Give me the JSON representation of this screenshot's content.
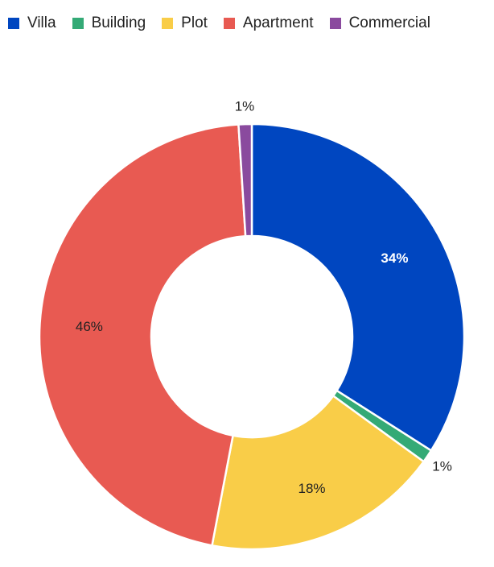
{
  "chart_data": {
    "type": "pie",
    "donut": true,
    "title": "",
    "legend_placement": "top",
    "categories": [
      "Villa",
      "Building",
      "Plot",
      "Apartment",
      "Commercial"
    ],
    "values": [
      34,
      1,
      18,
      46,
      1
    ],
    "labels": [
      "34%",
      "1%",
      "18%",
      "46%",
      "1%"
    ],
    "label_positions": [
      "inside",
      "outside",
      "inside",
      "inside",
      "outside"
    ],
    "colors": [
      "#0046c0",
      "#34aa76",
      "#f9cd48",
      "#e85a52",
      "#8a4a9e"
    ],
    "label_colors": [
      "#ffffff",
      "#222222",
      "#222222",
      "#222222",
      "#222222"
    ]
  }
}
